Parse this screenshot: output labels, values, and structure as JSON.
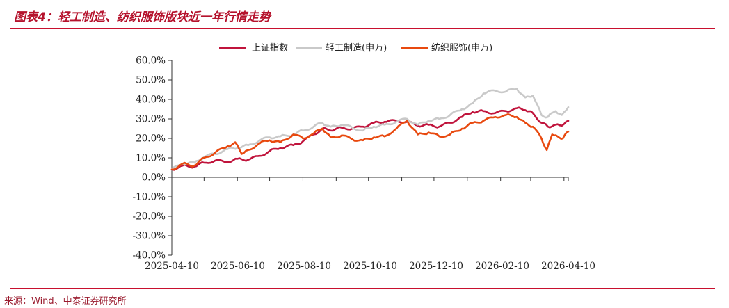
{
  "page": {
    "title": "图表4：轻工制造、纺织服饰版块近一年行情走势",
    "source": "来源：Wind、中泰证券研究所"
  },
  "chart_data": {
    "type": "line",
    "y_format": "percent_1dp",
    "ylim": [
      -40,
      60
    ],
    "ytick_step": 10,
    "x_tick_labels": [
      "2025-04-10",
      "2025-06-10",
      "2025-08-10",
      "2025-10-10",
      "2025-12-10",
      "2026-02-10",
      "2026-04-10"
    ],
    "x_start": "2025-04-10",
    "x_end": "2026-04-14",
    "legend_position": "top-center",
    "grid": false,
    "series": [
      {
        "name": "上证指数",
        "color": "#c0143c",
        "points": [
          [
            "2025-04-10",
            4.0
          ],
          [
            "2025-04-20",
            6.0
          ],
          [
            "2025-05-01",
            5.5
          ],
          [
            "2025-05-10",
            7.5
          ],
          [
            "2025-05-20",
            8.5
          ],
          [
            "2025-06-01",
            8.0
          ],
          [
            "2025-06-10",
            9.5
          ],
          [
            "2025-06-20",
            9.0
          ],
          [
            "2025-07-01",
            11.0
          ],
          [
            "2025-07-10",
            13.5
          ],
          [
            "2025-07-20",
            15.0
          ],
          [
            "2025-08-01",
            16.5
          ],
          [
            "2025-08-10",
            18.5
          ],
          [
            "2025-08-20",
            22.0
          ],
          [
            "2025-08-28",
            25.0
          ],
          [
            "2025-09-05",
            24.0
          ],
          [
            "2025-09-15",
            25.5
          ],
          [
            "2025-09-25",
            25.0
          ],
          [
            "2025-10-05",
            26.0
          ],
          [
            "2025-10-15",
            28.0
          ],
          [
            "2025-10-25",
            28.5
          ],
          [
            "2025-11-05",
            29.0
          ],
          [
            "2025-11-15",
            28.5
          ],
          [
            "2025-11-25",
            26.5
          ],
          [
            "2025-12-05",
            27.0
          ],
          [
            "2025-12-15",
            26.0
          ],
          [
            "2025-12-25",
            28.0
          ],
          [
            "2026-01-05",
            31.0
          ],
          [
            "2026-01-15",
            33.5
          ],
          [
            "2026-01-25",
            34.0
          ],
          [
            "2026-02-05",
            33.0
          ],
          [
            "2026-02-15",
            34.0
          ],
          [
            "2026-02-25",
            35.5
          ],
          [
            "2026-03-05",
            34.5
          ],
          [
            "2026-03-12",
            33.0
          ],
          [
            "2026-03-20",
            28.0
          ],
          [
            "2026-03-26",
            26.0
          ],
          [
            "2026-04-02",
            27.0
          ],
          [
            "2026-04-08",
            26.5
          ],
          [
            "2026-04-14",
            29.0
          ]
        ]
      },
      {
        "name": "轻工制造(申万)",
        "color": "#c9c9c9",
        "points": [
          [
            "2025-04-10",
            4.0
          ],
          [
            "2025-04-20",
            7.0
          ],
          [
            "2025-05-01",
            7.5
          ],
          [
            "2025-05-10",
            10.5
          ],
          [
            "2025-05-20",
            12.0
          ],
          [
            "2025-06-01",
            14.5
          ],
          [
            "2025-06-10",
            15.0
          ],
          [
            "2025-06-20",
            16.5
          ],
          [
            "2025-07-01",
            19.0
          ],
          [
            "2025-07-10",
            20.5
          ],
          [
            "2025-07-20",
            21.0
          ],
          [
            "2025-08-01",
            22.0
          ],
          [
            "2025-08-10",
            24.0
          ],
          [
            "2025-08-20",
            26.0
          ],
          [
            "2025-08-28",
            28.0
          ],
          [
            "2025-09-05",
            26.0
          ],
          [
            "2025-09-15",
            27.0
          ],
          [
            "2025-09-25",
            25.5
          ],
          [
            "2025-10-05",
            24.0
          ],
          [
            "2025-10-15",
            26.0
          ],
          [
            "2025-10-25",
            27.0
          ],
          [
            "2025-11-05",
            28.5
          ],
          [
            "2025-11-15",
            30.0
          ],
          [
            "2025-11-25",
            27.0
          ],
          [
            "2025-12-05",
            29.0
          ],
          [
            "2025-12-15",
            30.0
          ],
          [
            "2025-12-25",
            32.0
          ],
          [
            "2026-01-05",
            35.0
          ],
          [
            "2026-01-15",
            38.0
          ],
          [
            "2026-01-25",
            43.0
          ],
          [
            "2026-02-05",
            44.5
          ],
          [
            "2026-02-15",
            44.0
          ],
          [
            "2026-02-25",
            45.5
          ],
          [
            "2026-03-05",
            41.0
          ],
          [
            "2026-03-12",
            42.0
          ],
          [
            "2026-03-20",
            32.0
          ],
          [
            "2026-03-26",
            31.0
          ],
          [
            "2026-04-02",
            34.0
          ],
          [
            "2026-04-08",
            32.0
          ],
          [
            "2026-04-14",
            36.0
          ]
        ]
      },
      {
        "name": "纺织服饰(申万)",
        "color": "#e8490f",
        "points": [
          [
            "2025-04-10",
            4.0
          ],
          [
            "2025-04-20",
            7.0
          ],
          [
            "2025-05-01",
            6.0
          ],
          [
            "2025-05-10",
            10.0
          ],
          [
            "2025-05-20",
            12.5
          ],
          [
            "2025-06-01",
            16.0
          ],
          [
            "2025-06-08",
            18.0
          ],
          [
            "2025-06-14",
            12.0
          ],
          [
            "2025-06-20",
            14.0
          ],
          [
            "2025-07-01",
            17.5
          ],
          [
            "2025-07-10",
            19.0
          ],
          [
            "2025-07-20",
            18.0
          ],
          [
            "2025-08-01",
            22.0
          ],
          [
            "2025-08-10",
            20.0
          ],
          [
            "2025-08-20",
            22.5
          ],
          [
            "2025-08-28",
            25.0
          ],
          [
            "2025-09-05",
            20.5
          ],
          [
            "2025-09-15",
            21.5
          ],
          [
            "2025-09-25",
            19.5
          ],
          [
            "2025-10-05",
            19.0
          ],
          [
            "2025-10-15",
            20.5
          ],
          [
            "2025-10-25",
            21.0
          ],
          [
            "2025-11-05",
            25.0
          ],
          [
            "2025-11-15",
            29.0
          ],
          [
            "2025-11-25",
            22.0
          ],
          [
            "2025-12-05",
            23.0
          ],
          [
            "2025-12-15",
            21.0
          ],
          [
            "2025-12-25",
            22.0
          ],
          [
            "2026-01-05",
            25.0
          ],
          [
            "2026-01-15",
            28.0
          ],
          [
            "2026-01-25",
            29.0
          ],
          [
            "2026-02-05",
            31.0
          ],
          [
            "2026-02-15",
            32.0
          ],
          [
            "2026-02-25",
            31.0
          ],
          [
            "2026-03-05",
            28.0
          ],
          [
            "2026-03-12",
            26.0
          ],
          [
            "2026-03-20",
            20.0
          ],
          [
            "2026-03-25",
            14.0
          ],
          [
            "2026-03-30",
            22.0
          ],
          [
            "2026-04-04",
            21.0
          ],
          [
            "2026-04-09",
            20.0
          ],
          [
            "2026-04-14",
            23.5
          ]
        ]
      }
    ]
  }
}
